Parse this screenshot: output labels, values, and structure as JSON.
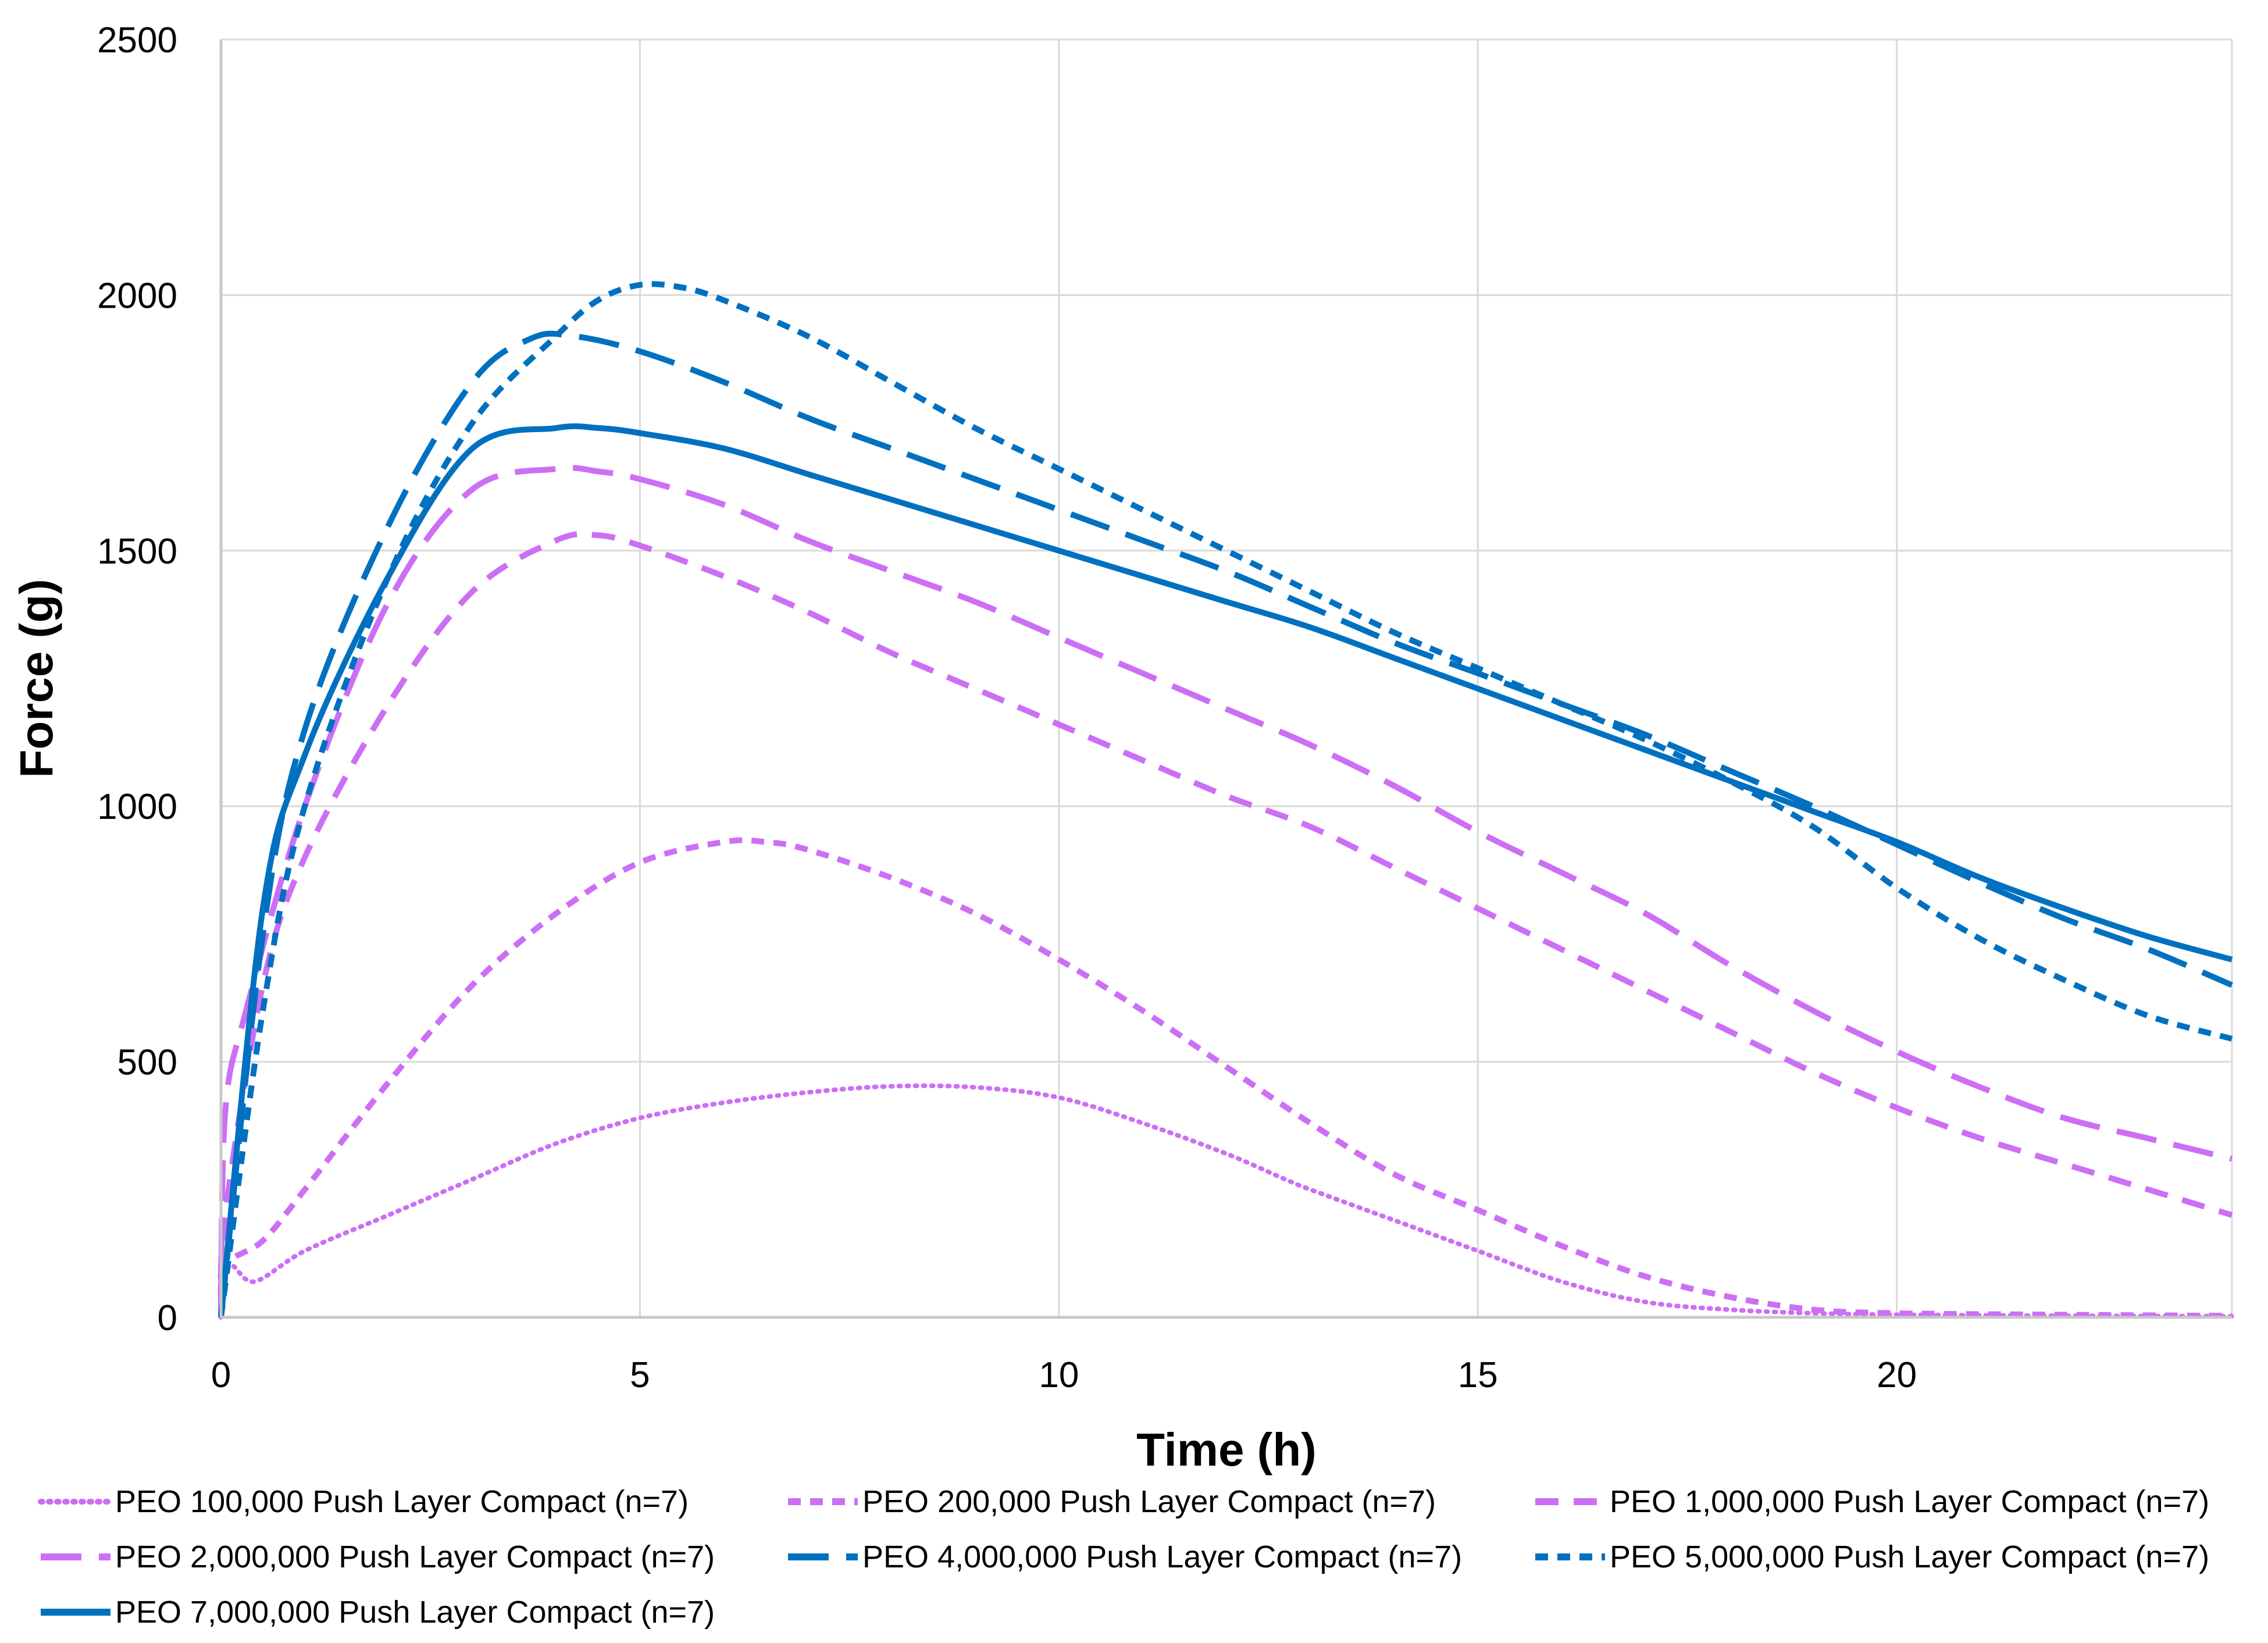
{
  "chart_data": {
    "type": "line",
    "title": "",
    "xlabel": "Time (h)",
    "ylabel": "Force (g)",
    "xlim": [
      0,
      24
    ],
    "ylim": [
      0,
      2500
    ],
    "xticks": [
      0,
      5,
      10,
      15,
      20
    ],
    "yticks": [
      0,
      500,
      1000,
      1500,
      2000,
      2500
    ],
    "grid": true,
    "legend_position": "bottom",
    "series": [
      {
        "name": "PEO 100,000 Push Layer Compact (n=7)",
        "color": "#cc6ff5",
        "style": "dotted",
        "x": [
          0,
          0.1,
          0.4,
          1,
          2,
          3,
          4,
          5,
          6,
          7,
          8,
          9,
          10,
          11,
          12,
          12.7,
          13,
          14,
          15,
          16,
          17,
          18,
          19,
          20,
          22,
          24
        ],
        "y": [
          0,
          100,
          70,
          130,
          200,
          270,
          340,
          390,
          420,
          440,
          452,
          450,
          430,
          380,
          320,
          270,
          250,
          190,
          130,
          70,
          30,
          15,
          8,
          5,
          3,
          2
        ]
      },
      {
        "name": "PEO 200,000 Push Layer Compact (n=7)",
        "color": "#cc6ff5",
        "style": "short-dash",
        "x": [
          0,
          0.05,
          0.5,
          1,
          2,
          3,
          4,
          5,
          6,
          6.5,
          7,
          8,
          9,
          10,
          11,
          12,
          13,
          14,
          15,
          16,
          17,
          18,
          19,
          20,
          22,
          24
        ],
        "y": [
          0,
          100,
          150,
          250,
          460,
          650,
          790,
          890,
          930,
          930,
          915,
          860,
          790,
          700,
          600,
          490,
          380,
          280,
          210,
          140,
          80,
          40,
          15,
          8,
          5,
          3
        ]
      },
      {
        "name": "PEO 1,000,000 Push Layer Compact (n=7)",
        "color": "#cc6ff5",
        "style": "dash",
        "x": [
          0,
          0.05,
          0.5,
          1,
          2,
          3,
          4,
          4.5,
          5,
          6,
          7,
          8,
          9,
          10,
          11,
          12,
          13,
          14,
          15,
          16,
          17,
          18,
          19,
          20,
          21,
          22,
          23,
          24
        ],
        "y": [
          0,
          200,
          650,
          900,
          1200,
          1420,
          1520,
          1530,
          1510,
          1450,
          1380,
          1300,
          1230,
          1160,
          1090,
          1020,
          960,
          880,
          800,
          720,
          640,
          560,
          480,
          410,
          350,
          300,
          250,
          200
        ]
      },
      {
        "name": "PEO 2,000,000 Push Layer Compact (n=7)",
        "color": "#cc6ff5",
        "style": "long-dash",
        "x": [
          0,
          0.05,
          0.3,
          1,
          2,
          3,
          4,
          4.5,
          5,
          6,
          7,
          8,
          9,
          10,
          11,
          12,
          13,
          14,
          15,
          16,
          17,
          18,
          19,
          20,
          21,
          22,
          23,
          24
        ],
        "y": [
          0,
          400,
          600,
          1000,
          1400,
          1620,
          1660,
          1655,
          1640,
          1590,
          1520,
          1460,
          1400,
          1330,
          1260,
          1190,
          1120,
          1040,
          950,
          870,
          790,
          690,
          600,
          520,
          450,
          390,
          350,
          310
        ]
      },
      {
        "name": "PEO 4,000,000 Push Layer Compact (n=7)",
        "color": "#0070c0",
        "style": "long-dash",
        "x": [
          0,
          0.5,
          1,
          2,
          3,
          3.7,
          4.2,
          5,
          6,
          7,
          8,
          9,
          10,
          11,
          12,
          13,
          14,
          15,
          16,
          17,
          18,
          19,
          20,
          21,
          22,
          23,
          24
        ],
        "y": [
          0,
          750,
          1150,
          1550,
          1830,
          1915,
          1920,
          1890,
          1830,
          1760,
          1700,
          1640,
          1580,
          1520,
          1460,
          1390,
          1320,
          1260,
          1200,
          1140,
          1070,
          1000,
          925,
          850,
          780,
          720,
          650
        ]
      },
      {
        "name": "PEO 5,000,000 Push Layer Compact (n=7)",
        "color": "#0070c0",
        "style": "short-dash",
        "x": [
          0,
          0.5,
          1,
          2,
          3,
          4,
          4.5,
          5,
          5.5,
          6,
          7,
          8,
          9,
          10,
          11,
          12,
          13,
          14,
          15,
          16,
          17,
          18,
          19,
          20,
          21,
          22,
          23,
          24
        ],
        "y": [
          0,
          600,
          1000,
          1450,
          1750,
          1920,
          1990,
          2020,
          2015,
          1990,
          1920,
          1830,
          1740,
          1660,
          1580,
          1500,
          1420,
          1340,
          1270,
          1200,
          1130,
          1050,
          960,
          840,
          740,
          660,
          590,
          545
        ]
      },
      {
        "name": "PEO 7,000,000 Push Layer Compact (n=7)",
        "color": "#0070c0",
        "style": "solid",
        "x": [
          0,
          0.5,
          1,
          2,
          3,
          4,
          4.5,
          5,
          6,
          7,
          8,
          9,
          10,
          11,
          12,
          13,
          14,
          15,
          16,
          17,
          18,
          19,
          20,
          21,
          22,
          23,
          24
        ],
        "y": [
          0,
          800,
          1100,
          1450,
          1700,
          1740,
          1740,
          1730,
          1700,
          1650,
          1600,
          1550,
          1500,
          1450,
          1400,
          1350,
          1290,
          1230,
          1170,
          1110,
          1050,
          990,
          930,
          860,
          800,
          745,
          700
        ]
      }
    ]
  }
}
